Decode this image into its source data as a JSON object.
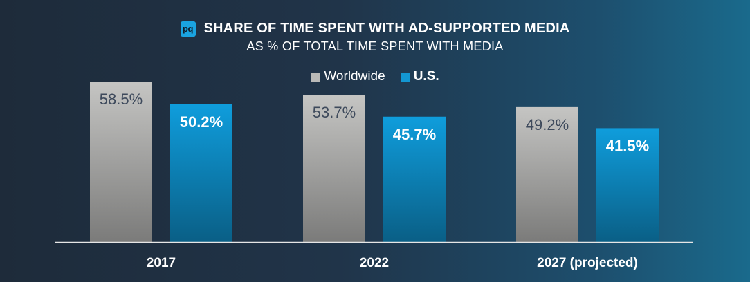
{
  "header": {
    "logo_text": "pq",
    "title": "SHARE OF TIME SPENT WITH AD-SUPPORTED MEDIA",
    "subtitle": "AS % OF TOTAL TIME SPENT WITH MEDIA"
  },
  "colors": {
    "worldwide_top": "#c5c5c3",
    "worldwide_bottom": "#7b7b7a",
    "us_top": "#0f9ddc",
    "us_bottom": "#0a5f86",
    "worldwide_label": "#3e4a5c",
    "us_label": "#ffffff",
    "axis": "#e6e6e6",
    "tick_label": "#ffffff"
  },
  "chart_data": {
    "type": "bar",
    "title": "SHARE OF TIME SPENT WITH AD-SUPPORTED MEDIA",
    "subtitle": "AS % OF TOTAL TIME SPENT WITH MEDIA",
    "categories": [
      "2017",
      "2022",
      "2027 (projected)"
    ],
    "series": [
      {
        "name": "Worldwide",
        "values": [
          58.5,
          53.7,
          49.2
        ],
        "labels": [
          "58.5%",
          "53.7%",
          "49.2%"
        ]
      },
      {
        "name": "U.S.",
        "values": [
          50.2,
          45.7,
          41.5
        ],
        "labels": [
          "50.2%",
          "45.7%",
          "41.5%"
        ]
      }
    ],
    "ylim": [
      0,
      60
    ],
    "legend": "top-center",
    "grid": false,
    "xlabel": "",
    "ylabel": ""
  }
}
